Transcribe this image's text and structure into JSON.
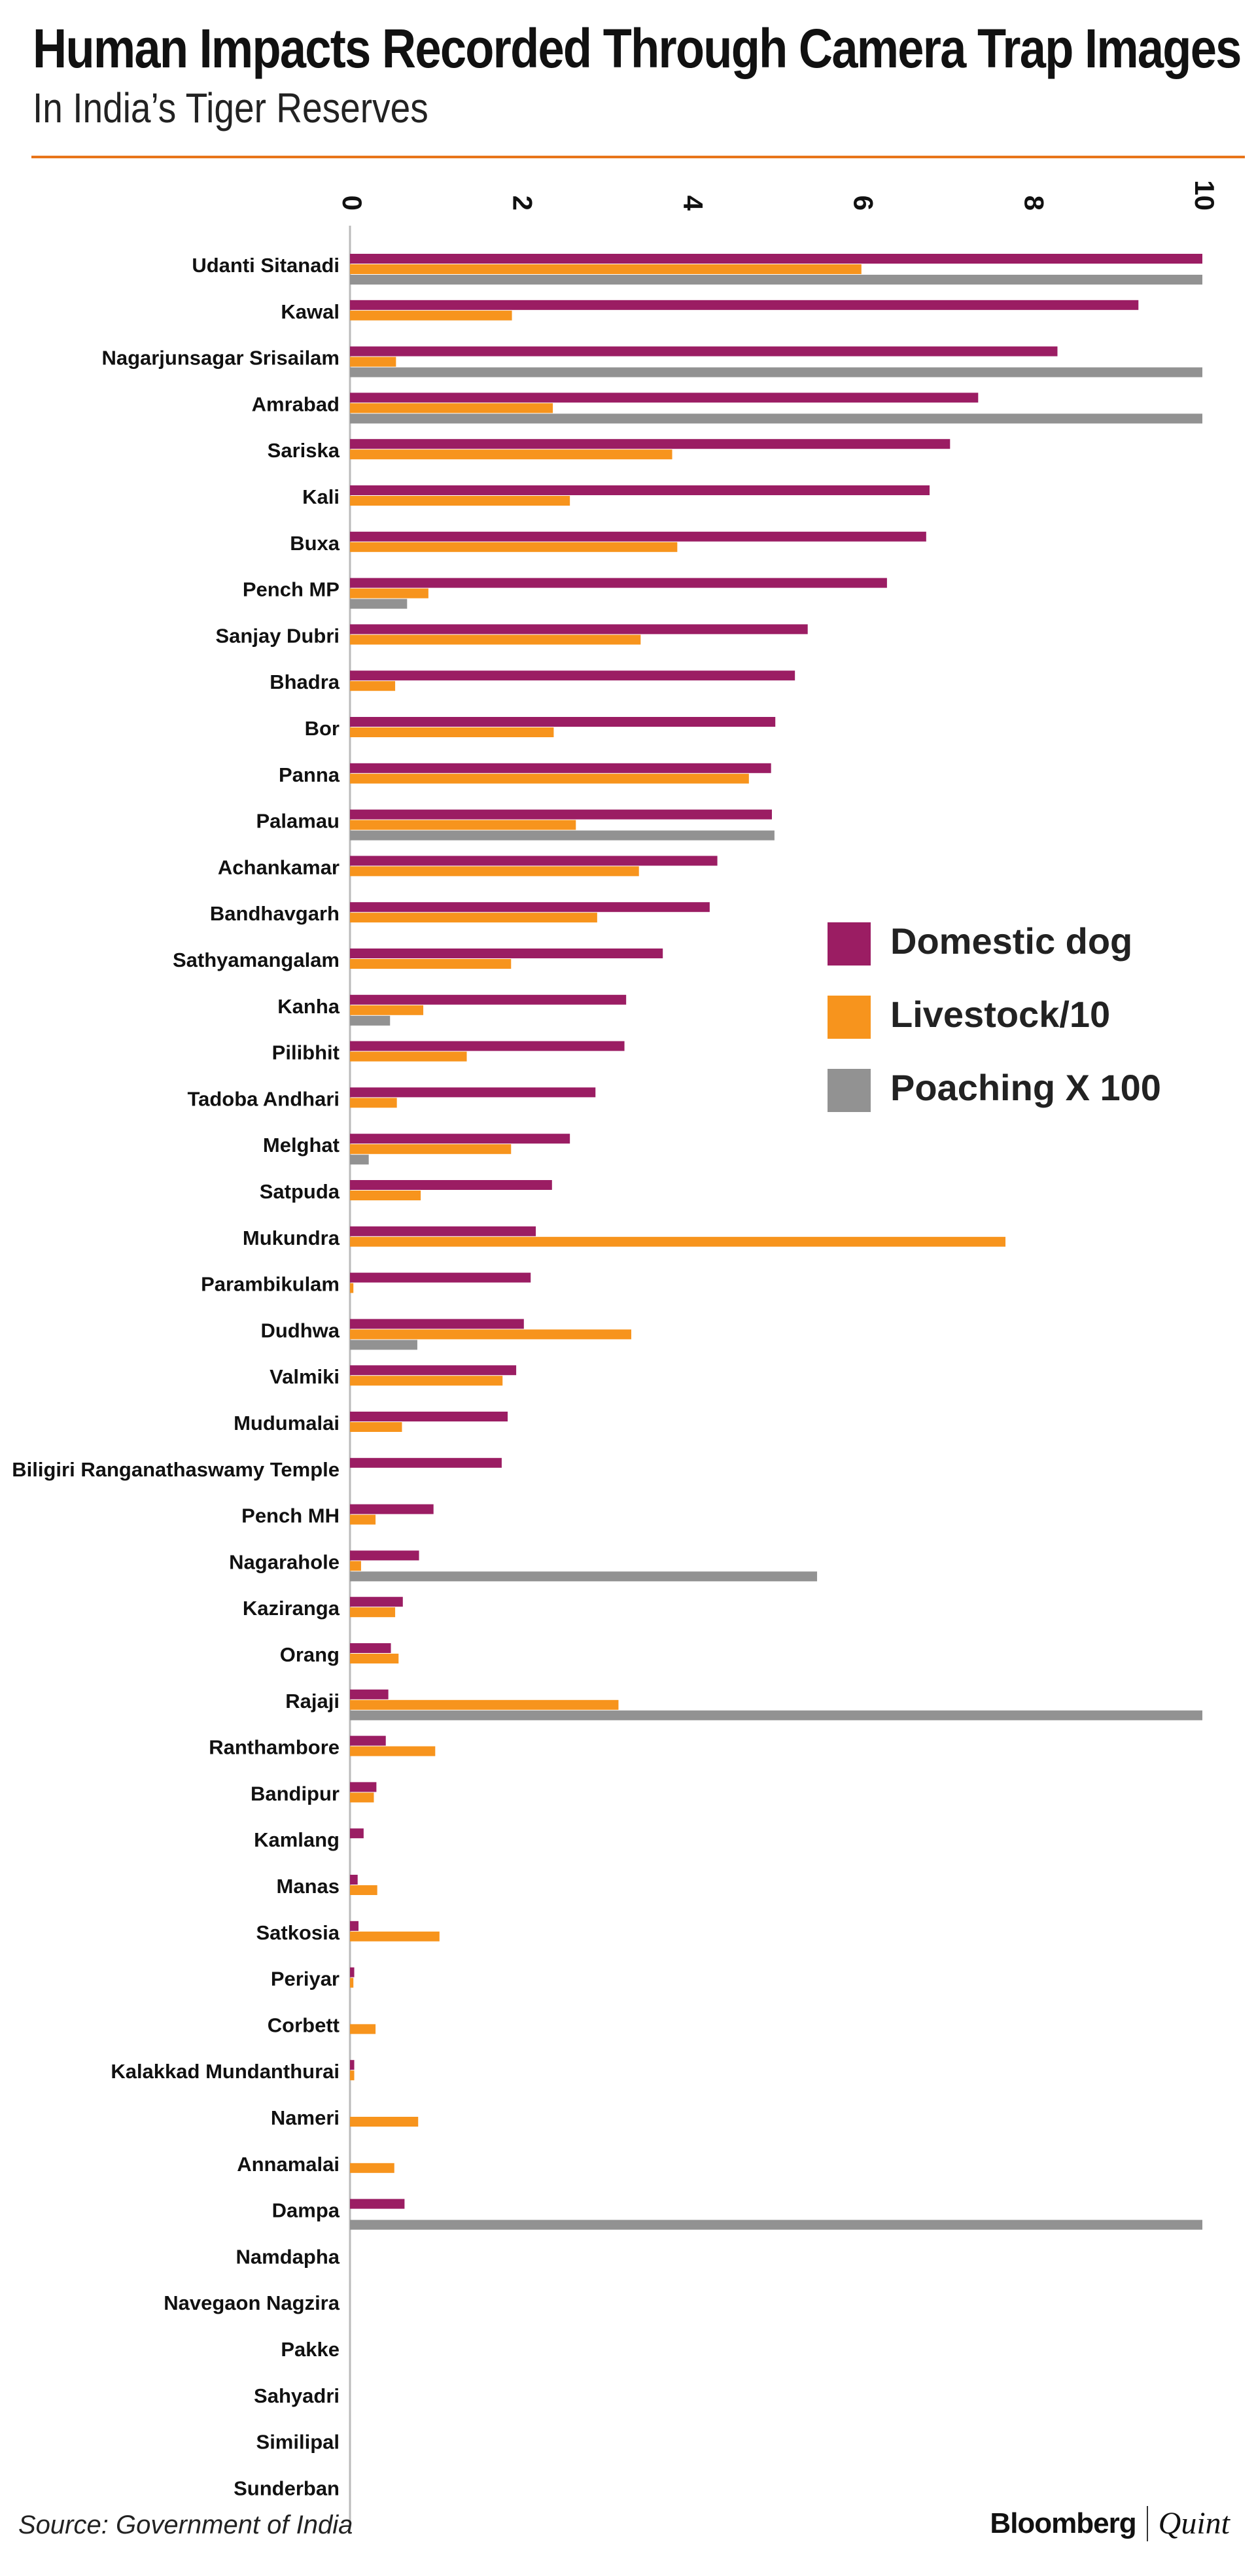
{
  "header": {
    "title": "Human Impacts Recorded Through Camera Trap Images",
    "subtitle": "In India’s Tiger Reserves"
  },
  "footer": {
    "source": "Source: Government of India",
    "brand_left": "Bloomberg",
    "brand_right": "Quint"
  },
  "colors": {
    "dog": "#9b1d63",
    "livestock": "#f7941d",
    "poaching": "#929292",
    "axis": "#bbbbbb",
    "rule": "#e8751a"
  },
  "chart_data": {
    "type": "bar",
    "orientation": "horizontal",
    "title": "Human Impacts Recorded Through Camera Trap Images",
    "subtitle": "In India’s Tiger Reserves",
    "xlim": [
      0,
      10
    ],
    "xticks": [
      0,
      2,
      4,
      6,
      8,
      10
    ],
    "legend_position": "right",
    "categories": [
      "Udanti Sitanadi",
      "Kawal",
      "Nagarjunsagar Srisailam",
      "Amrabad",
      "Sariska",
      "Kali",
      "Buxa",
      "Pench MP",
      "Sanjay Dubri",
      "Bhadra",
      "Bor",
      "Panna",
      "Palamau",
      "Achankamar",
      "Bandhavgarh",
      "Sathyamangalam",
      "Kanha",
      "Pilibhit",
      "Tadoba Andhari",
      "Melghat",
      "Satpuda",
      "Mukundra",
      "Parambikulam",
      "Dudhwa",
      "Valmiki",
      "Mudumalai",
      "Biligiri Ranganathaswamy Temple",
      "Pench MH",
      "Nagarahole",
      "Kaziranga",
      "Orang",
      "Rajaji",
      "Ranthambore",
      "Bandipur",
      "Kamlang",
      "Manas",
      "Satkosia",
      "Periyar",
      "Corbett",
      "Kalakkad Mundanthurai",
      "Nameri",
      "Annamalai",
      "Dampa",
      "Namdapha",
      "Navegaon Nagzira",
      "Pakke",
      "Sahyadri",
      "Similipal",
      "Sunderban"
    ],
    "series": [
      {
        "name": "Domestic dog",
        "values": [
          10,
          9.25,
          8.3,
          7.37,
          7.04,
          6.8,
          6.76,
          6.3,
          5.37,
          5.22,
          4.99,
          4.94,
          4.95,
          4.31,
          4.22,
          3.67,
          3.24,
          3.22,
          2.88,
          2.58,
          2.37,
          2.18,
          2.12,
          2.04,
          1.95,
          1.85,
          1.78,
          0.98,
          0.81,
          0.62,
          0.48,
          0.45,
          0.42,
          0.31,
          0.16,
          0.09,
          0.1,
          0.05,
          0,
          0.05,
          0,
          0,
          0.64,
          0,
          0,
          0,
          0,
          0,
          0
        ]
      },
      {
        "name": "Livestock/10",
        "values": [
          6,
          1.9,
          0.54,
          2.38,
          3.78,
          2.58,
          3.84,
          0.92,
          3.41,
          0.53,
          2.39,
          4.68,
          2.65,
          3.39,
          2.9,
          1.89,
          0.86,
          1.37,
          0.55,
          1.89,
          0.83,
          7.69,
          0.04,
          3.3,
          1.79,
          0.61,
          0,
          0.3,
          0.13,
          0.53,
          0.57,
          3.15,
          1,
          0.28,
          0,
          0.32,
          1.05,
          0.04,
          0.3,
          0.05,
          0.8,
          0.52,
          0,
          0,
          0,
          0,
          0,
          0,
          0
        ]
      },
      {
        "name": "Poaching X 100",
        "values": [
          10,
          0,
          10,
          10,
          0,
          0,
          0,
          0.67,
          0,
          0,
          0,
          0,
          4.98,
          0,
          0,
          0,
          0.47,
          0,
          0,
          0.22,
          0,
          0,
          0,
          0.79,
          0,
          0,
          0,
          0,
          5.48,
          0,
          0,
          10,
          0,
          0,
          0,
          0,
          0,
          0,
          0,
          0,
          0,
          0,
          10,
          0,
          0,
          0,
          0,
          0,
          0
        ]
      }
    ]
  }
}
